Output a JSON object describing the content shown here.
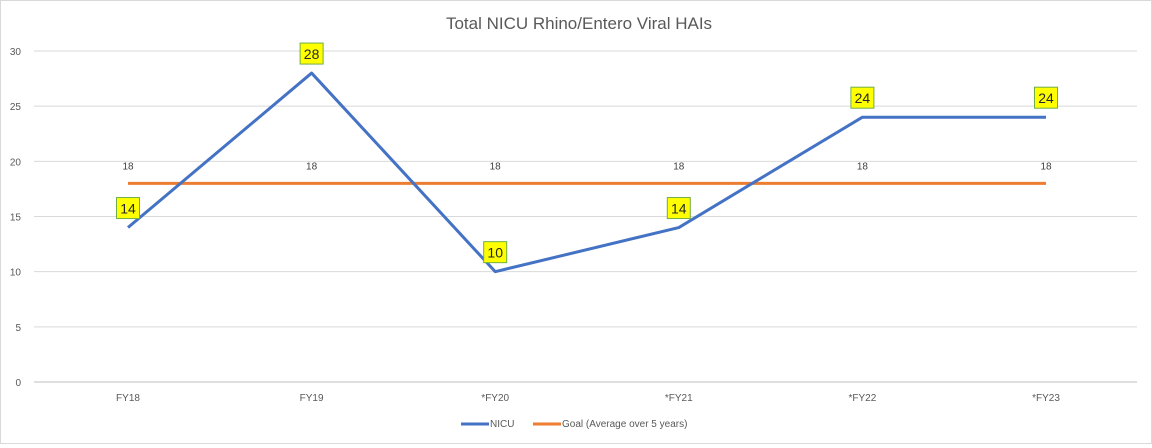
{
  "chart_data": {
    "type": "line",
    "title": "Total NICU Rhino/Entero Viral HAIs",
    "categories": [
      "FY18",
      "FY19",
      "*FY20",
      "*FY21",
      "*FY22",
      "*FY23"
    ],
    "ylim": [
      0,
      30
    ],
    "yticks": [
      0,
      5,
      10,
      15,
      20,
      25,
      30
    ],
    "grid": true,
    "legend_position": "bottom",
    "series": [
      {
        "name": "NICU",
        "values": [
          14,
          28,
          10,
          14,
          24,
          24
        ],
        "color": "#4472c4",
        "data_label_style": "yellow-box"
      },
      {
        "name": "Goal (Average over 5 years)",
        "values": [
          18,
          18,
          18,
          18,
          18,
          18
        ],
        "color": "#ed7d31",
        "data_label_style": "plain"
      }
    ]
  }
}
